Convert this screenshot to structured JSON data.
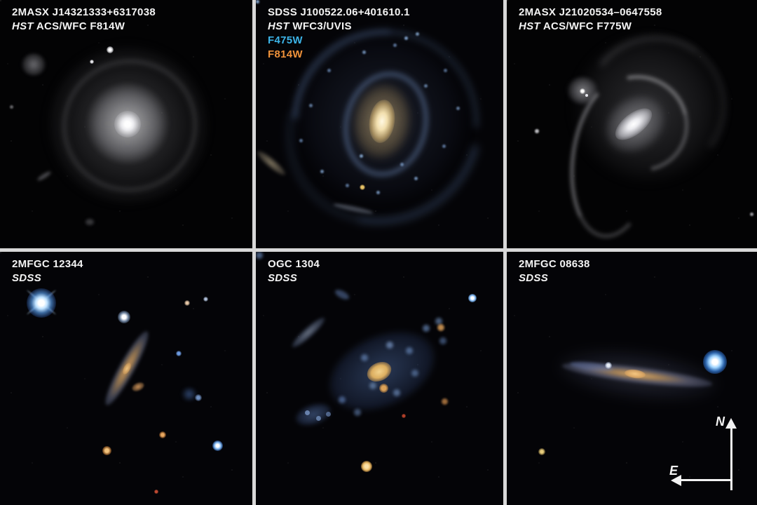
{
  "panels": [
    {
      "title": "2MASX J14321333+6317038",
      "line2_italic": "HST",
      "line2_rest": " ACS/WFC F814W",
      "filters": []
    },
    {
      "title": "SDSS J100522.06+401610.1",
      "line2_italic": "HST",
      "line2_rest": " WFC3/UVIS",
      "filters": [
        {
          "label": "F475W",
          "color": "#3cb4e8"
        },
        {
          "label": "F814W",
          "color": "#f0923a"
        }
      ]
    },
    {
      "title": "2MASX J21020534–0647558",
      "line2_italic": "HST",
      "line2_rest": " ACS/WFC F775W",
      "filters": []
    },
    {
      "title": "2MFGC 12344",
      "line2_italic": "SDSS",
      "line2_rest": "",
      "filters": []
    },
    {
      "title": "OGC 1304",
      "line2_italic": "SDSS",
      "line2_rest": "",
      "filters": []
    },
    {
      "title": "2MFGC 08638",
      "line2_italic": "SDSS",
      "line2_rest": "",
      "filters": []
    }
  ],
  "compass": {
    "north": "N",
    "east": "E"
  }
}
